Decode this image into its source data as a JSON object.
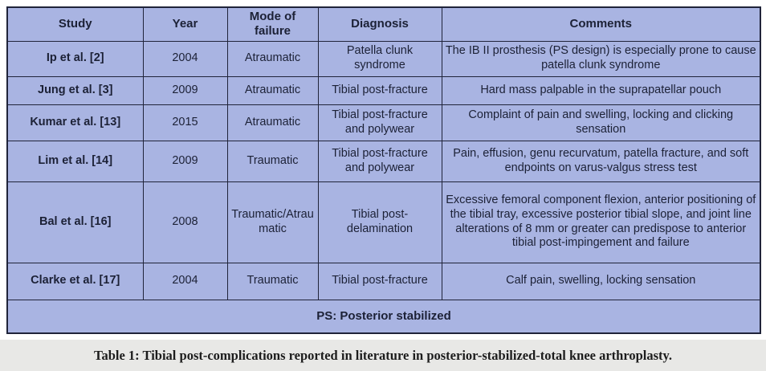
{
  "colors": {
    "cell_bg": "#a9b4e2",
    "grid_border": "#20243a",
    "text": "#1c2136",
    "caption_band_bg": "#e8e8e6",
    "caption_text": "#1c1c1c",
    "page_bg": "#ffffff"
  },
  "table": {
    "headers": [
      "Study",
      "Year",
      "Mode of failure",
      "Diagnosis",
      "Comments"
    ],
    "rows": [
      {
        "study": "Ip et al. [2]",
        "year": "2004",
        "mode": "Atraumatic",
        "diagnosis": "Patella clunk syndrome",
        "comments": "The IB II prosthesis (PS design) is especially prone to cause patella clunk syndrome"
      },
      {
        "study": "Jung et al. [3]",
        "year": "2009",
        "mode": "Atraumatic",
        "diagnosis": "Tibial post-fracture",
        "comments": "Hard mass palpable in the suprapatellar pouch"
      },
      {
        "study": "Kumar et al. [13]",
        "year": "2015",
        "mode": "Atraumatic",
        "diagnosis": "Tibial post-fracture and polywear",
        "comments": "Complaint of pain and swelling, locking and clicking sensation"
      },
      {
        "study": "Lim et al. [14]",
        "year": "2009",
        "mode": "Traumatic",
        "diagnosis": "Tibial post-fracture and polywear",
        "comments": "Pain, effusion, genu recurvatum, patella fracture, and soft endpoints on varus-valgus stress test"
      },
      {
        "study": "Bal et al. [16]",
        "year": "2008",
        "mode": "Traumatic/Atraumatic",
        "diagnosis": "Tibial post-delamination",
        "comments": "Excessive femoral component flexion, anterior positioning of the tibial tray, excessive posterior tibial slope, and joint line alterations of 8 mm or greater can predispose to anterior tibial post-impingement and failure"
      },
      {
        "study": "Clarke et al. [17]",
        "year": "2004",
        "mode": "Traumatic",
        "diagnosis": "Tibial post-fracture",
        "comments": "Calf pain, swelling, locking sensation"
      }
    ],
    "footnote": "PS: Posterior stabilized"
  },
  "caption": "Table 1: Tibial post-complications reported in literature in posterior-stabilized-total knee arthroplasty."
}
